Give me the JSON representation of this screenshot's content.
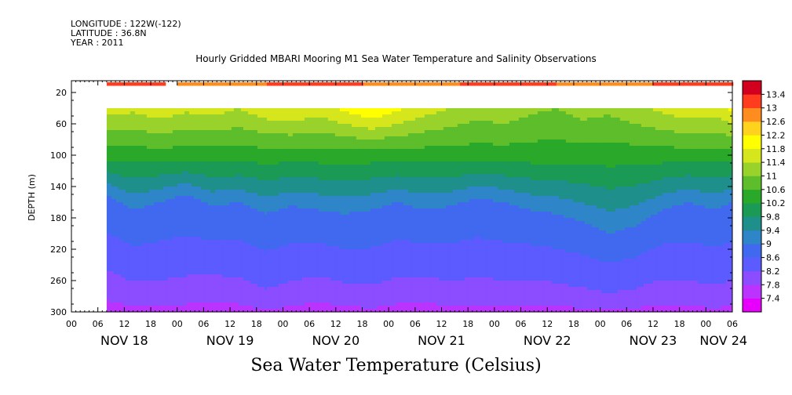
{
  "header": {
    "longitude": "LONGITUDE : 122W(-122)",
    "latitude": "LATITUDE : 36.8N",
    "year": "YEAR : 2011"
  },
  "chart_data": {
    "type": "heatmap",
    "title": "Hourly Gridded MBARI Mooring M1 Sea Water Temperature and Salinity Observations",
    "xlabel": "Sea Water Temperature (Celsius)",
    "ylabel": "DEPTH (m)",
    "x_unit": "hours since 2011-11-18 00:00",
    "xlim": [
      0,
      150
    ],
    "ylim": [
      300,
      10
    ],
    "y_ticks": [
      20,
      60,
      100,
      140,
      180,
      220,
      260,
      300
    ],
    "x_hour_ticks": [
      "00",
      "06",
      "12",
      "18",
      "00",
      "06",
      "12",
      "18",
      "00",
      "06",
      "12",
      "18",
      "00",
      "06",
      "12",
      "18",
      "00",
      "06",
      "12",
      "18",
      "00",
      "06",
      "12",
      "18",
      "00",
      "06"
    ],
    "x_day_labels": [
      {
        "label": "NOV 18",
        "hour": 12
      },
      {
        "label": "NOV 19",
        "hour": 36
      },
      {
        "label": "NOV 20",
        "hour": 60
      },
      {
        "label": "NOV 21",
        "hour": 84
      },
      {
        "label": "NOV 22",
        "hour": 108
      },
      {
        "label": "NOV 23",
        "hour": 132
      },
      {
        "label": "NOV 24",
        "hour": 148
      }
    ],
    "colorbar": {
      "levels": [
        7.4,
        7.8,
        8.2,
        8.6,
        9,
        9.4,
        9.8,
        10.2,
        10.6,
        11,
        11.4,
        11.8,
        12.2,
        12.6,
        13,
        13.4
      ],
      "colors": [
        "#e800ff",
        "#bb33ff",
        "#8b4dff",
        "#5b5bff",
        "#4069f0",
        "#2e85c8",
        "#1e8f8a",
        "#1a9a55",
        "#2aa82a",
        "#5dbd2a",
        "#99d22a",
        "#d6e61c",
        "#ffff00",
        "#ffd21e",
        "#ff8c1e",
        "#ff3c1e",
        "#d2001e"
      ]
    },
    "surface_row": {
      "depth": 10,
      "value_range": [
        12.6,
        13.4
      ],
      "gap_hours": [
        21,
        24
      ]
    },
    "no_data_depth_range": [
      20,
      40
    ],
    "profiles": [
      {
        "hour": 8,
        "t_40": 11.6,
        "d9": 150,
        "d8": 270
      },
      {
        "hour": 14,
        "t_40": 11.5,
        "d9": 170,
        "d8": 285
      },
      {
        "hour": 20,
        "t_40": 11.7,
        "d9": 160,
        "d8": 285
      },
      {
        "hour": 26,
        "t_40": 11.5,
        "d9": 150,
        "d8": 280
      },
      {
        "hour": 32,
        "t_40": 11.6,
        "d9": 165,
        "d8": 275
      },
      {
        "hour": 38,
        "t_40": 11.4,
        "d9": 160,
        "d8": 280
      },
      {
        "hour": 44,
        "t_40": 11.7,
        "d9": 175,
        "d8": 295
      },
      {
        "hour": 50,
        "t_40": 11.8,
        "d9": 165,
        "d8": 285
      },
      {
        "hour": 56,
        "t_40": 11.6,
        "d9": 170,
        "d8": 275
      },
      {
        "hour": 62,
        "t_40": 11.9,
        "d9": 175,
        "d8": 285
      },
      {
        "hour": 68,
        "t_40": 12.2,
        "d9": 170,
        "d8": 290
      },
      {
        "hour": 74,
        "t_40": 11.9,
        "d9": 160,
        "d8": 280
      },
      {
        "hour": 80,
        "t_40": 11.6,
        "d9": 170,
        "d8": 275
      },
      {
        "hour": 86,
        "t_40": 11.4,
        "d9": 165,
        "d8": 285
      },
      {
        "hour": 92,
        "t_40": 11.2,
        "d9": 155,
        "d8": 280
      },
      {
        "hour": 98,
        "t_40": 11.3,
        "d9": 160,
        "d8": 285
      },
      {
        "hour": 104,
        "t_40": 11.1,
        "d9": 170,
        "d8": 280
      },
      {
        "hour": 110,
        "t_40": 11.0,
        "d9": 175,
        "d8": 285
      },
      {
        "hour": 116,
        "t_40": 11.2,
        "d9": 185,
        "d8": 290
      },
      {
        "hour": 122,
        "t_40": 11.1,
        "d9": 200,
        "d8": 295
      },
      {
        "hour": 128,
        "t_40": 11.3,
        "d9": 190,
        "d8": 290
      },
      {
        "hour": 134,
        "t_40": 11.5,
        "d9": 170,
        "d8": 280
      },
      {
        "hour": 140,
        "t_40": 11.7,
        "d9": 160,
        "d8": 285
      },
      {
        "hour": 146,
        "t_40": 11.6,
        "d9": 170,
        "d8": 290
      },
      {
        "hour": 150,
        "t_40": 11.9,
        "d9": 160,
        "d8": 285
      }
    ]
  }
}
